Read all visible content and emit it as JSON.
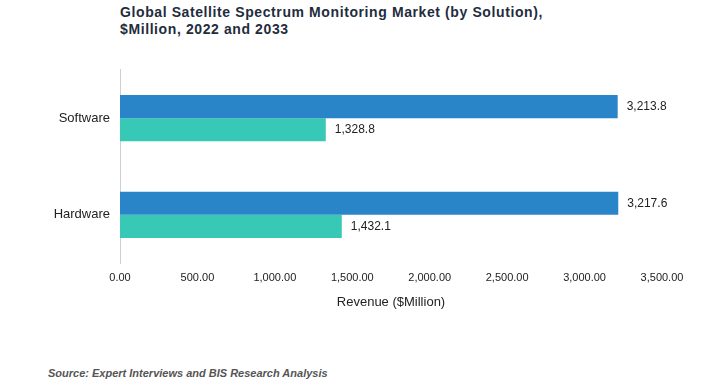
{
  "chart_data": {
    "type": "bar",
    "orientation": "horizontal",
    "title": "Global Satellite Spectrum Monitoring Market (by Solution), $Million, 2022 and 2033",
    "x_label": "Revenue ($Million)",
    "source": "Source: Expert Interviews and BIS Research Analysis",
    "categories": [
      "Software",
      "Hardware"
    ],
    "series": [
      {
        "color": "#2a84c8",
        "values": [
          3213.8,
          3217.6
        ],
        "value_labels": [
          "3,213.8",
          "3,217.6"
        ]
      },
      {
        "color": "#37c9b5",
        "values": [
          1328.8,
          1432.1
        ],
        "value_labels": [
          "1,328.8",
          "1,432.1"
        ]
      }
    ],
    "xlim": [
      0,
      3500
    ],
    "xticks": [
      {
        "value": 0,
        "label": "0.00"
      },
      {
        "value": 500,
        "label": "500.00"
      },
      {
        "value": 1000,
        "label": "1,000.00"
      },
      {
        "value": 1500,
        "label": "1,500.00"
      },
      {
        "value": 2000,
        "label": "2,000.00"
      },
      {
        "value": 2500,
        "label": "2,500.00"
      },
      {
        "value": 3000,
        "label": "3,000.00"
      },
      {
        "value": 3500,
        "label": "3,500.00"
      }
    ],
    "grid": false,
    "data_labels": true
  }
}
